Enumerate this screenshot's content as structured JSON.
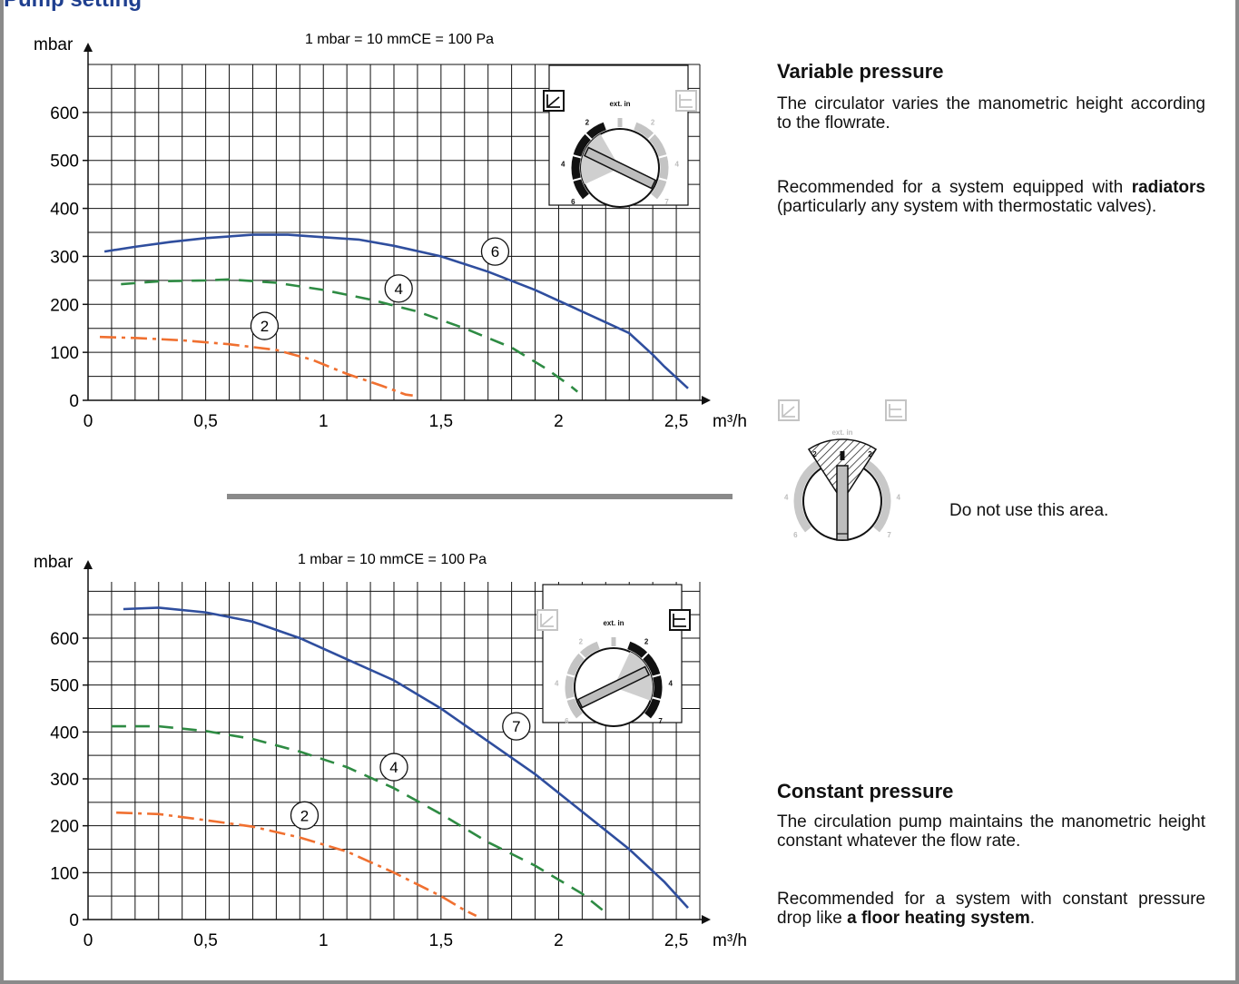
{
  "page": {
    "title": "Pump setting"
  },
  "unit_note": "1 mbar = 10 mmCE = 100 Pa",
  "variable": {
    "heading": "Variable pressure",
    "desc": "The circulator varies the manometric height according to the flowrate.",
    "rec_pre": "Recommended for a system equipped with",
    "rec_bold": "radiators",
    "rec_post": "(particularly any system with thermostatic valves)."
  },
  "constant": {
    "heading": "Constant pressure",
    "desc": "The circulation pump maintains the manometric height constant whatever the flow rate.",
    "rec_pre": "Recommended for a system with constant pressure drop like",
    "rec_bold": "a floor heating system",
    "rec_post": "."
  },
  "dial": {
    "label": "ext. in",
    "marks": [
      "2",
      "4",
      "6",
      "2",
      "4",
      "7"
    ]
  },
  "warning": {
    "text": "Do not use this area."
  },
  "colors": {
    "curve_high": "#2f4e9e",
    "curve_mid": "#2e8b43",
    "curve_low": "#f07030",
    "title": "#1f3f8f",
    "separator": "#8a8a8a"
  },
  "chart_data": [
    {
      "type": "line",
      "ylabel": "mbar",
      "xlabel": "m³/h",
      "xlim": [
        0,
        2.6
      ],
      "ylim": [
        0,
        700
      ],
      "xticks": [
        "0",
        "0,5",
        "1",
        "1,5",
        "2",
        "2,5"
      ],
      "yticks": [
        "0",
        "100",
        "200",
        "300",
        "400",
        "500",
        "600"
      ],
      "grid": true,
      "setting_indicator": "variable pressure",
      "series": [
        {
          "name": "6",
          "x": [
            0.07,
            0.2,
            0.35,
            0.5,
            0.7,
            0.85,
            1.0,
            1.15,
            1.3,
            1.5,
            1.7,
            1.9,
            2.1,
            2.3,
            2.4,
            2.45,
            2.55
          ],
          "y": [
            310,
            320,
            330,
            338,
            345,
            345,
            340,
            335,
            322,
            300,
            268,
            230,
            185,
            140,
            95,
            70,
            25
          ]
        },
        {
          "name": "4",
          "x": [
            0.14,
            0.3,
            0.5,
            0.6,
            0.8,
            1.0,
            1.2,
            1.4,
            1.6,
            1.8,
            1.95,
            2.05,
            2.08
          ],
          "y": [
            242,
            248,
            250,
            252,
            245,
            230,
            210,
            185,
            150,
            110,
            65,
            30,
            18
          ]
        },
        {
          "name": "2",
          "x": [
            0.05,
            0.2,
            0.4,
            0.6,
            0.8,
            0.95,
            1.1,
            1.25,
            1.35,
            1.38
          ],
          "y": [
            132,
            130,
            125,
            117,
            105,
            85,
            55,
            30,
            12,
            10
          ]
        }
      ]
    },
    {
      "type": "line",
      "ylabel": "mbar",
      "xlabel": "m³/h",
      "xlim": [
        0,
        2.6
      ],
      "ylim": [
        0,
        720
      ],
      "xticks": [
        "0",
        "0,5",
        "1",
        "1,5",
        "2",
        "2,5"
      ],
      "yticks": [
        "0",
        "100",
        "200",
        "300",
        "400",
        "500",
        "600"
      ],
      "grid": true,
      "setting_indicator": "constant pressure",
      "series": [
        {
          "name": "7",
          "x": [
            0.15,
            0.3,
            0.5,
            0.7,
            0.9,
            1.1,
            1.3,
            1.5,
            1.7,
            1.9,
            2.1,
            2.3,
            2.45,
            2.55
          ],
          "y": [
            662,
            665,
            655,
            635,
            600,
            555,
            510,
            450,
            380,
            310,
            230,
            150,
            80,
            25
          ]
        },
        {
          "name": "4",
          "x": [
            0.1,
            0.3,
            0.5,
            0.7,
            0.9,
            1.1,
            1.3,
            1.5,
            1.7,
            1.9,
            2.1,
            2.2
          ],
          "y": [
            412,
            412,
            402,
            385,
            358,
            325,
            280,
            225,
            165,
            115,
            55,
            15
          ]
        },
        {
          "name": "2",
          "x": [
            0.12,
            0.3,
            0.5,
            0.7,
            0.9,
            1.1,
            1.3,
            1.5,
            1.6,
            1.65
          ],
          "y": [
            228,
            225,
            212,
            198,
            175,
            145,
            100,
            50,
            20,
            8
          ]
        }
      ]
    }
  ]
}
